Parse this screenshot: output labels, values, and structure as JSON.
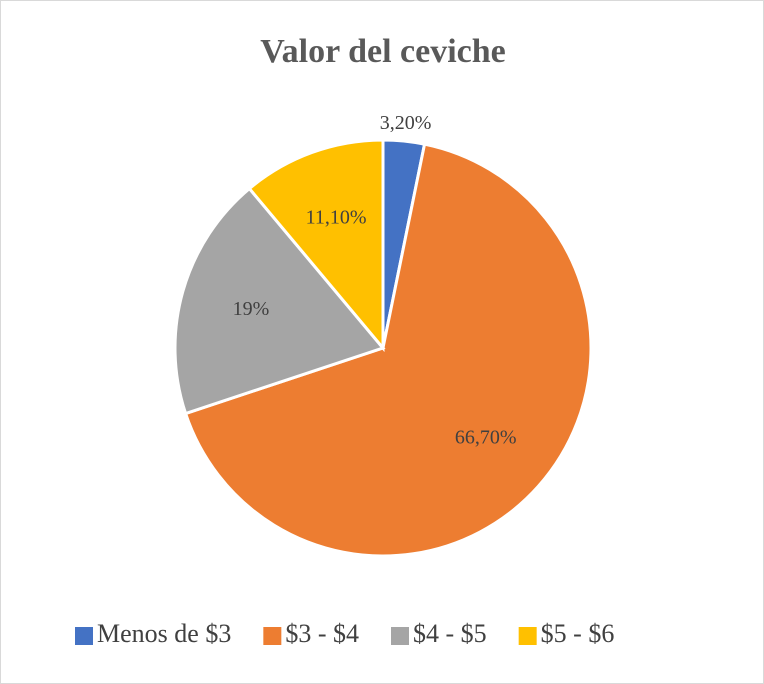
{
  "chart_data": {
    "type": "pie",
    "title": "Valor del ceviche",
    "categories": [
      "Menos de $3",
      "$3 - $4",
      "$4 - $5",
      "$5 - $6"
    ],
    "values": [
      3.2,
      66.7,
      19,
      11.1
    ],
    "value_labels": [
      "3,20%",
      "66,70%",
      "19%",
      "11,10%"
    ],
    "colors": [
      "#4472c4",
      "#ed7d31",
      "#a5a5a5",
      "#ffc000"
    ],
    "legend": "bottom"
  }
}
